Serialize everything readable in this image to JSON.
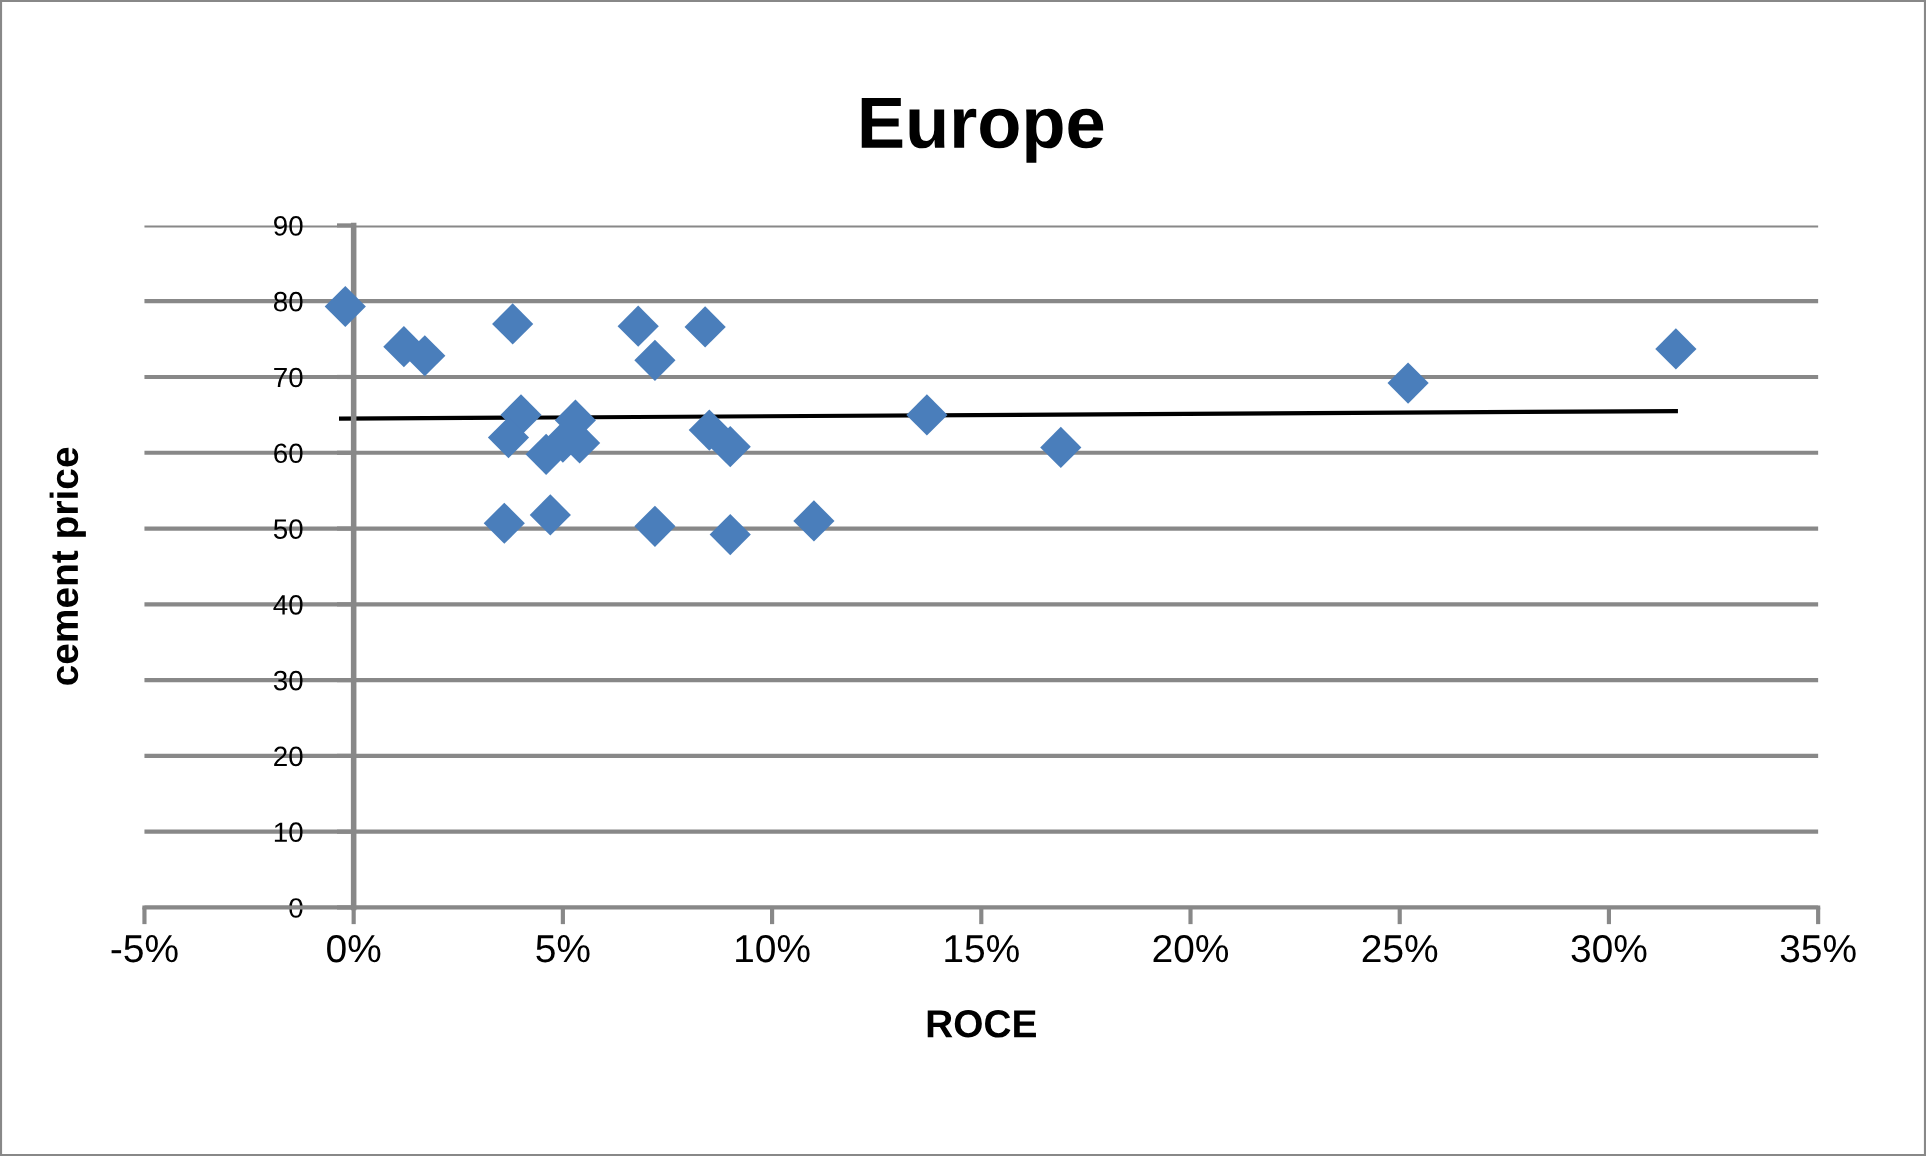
{
  "chart_data": {
    "type": "scatter",
    "title": "Europe",
    "xlabel": "ROCE",
    "ylabel": "cement price",
    "series": [
      {
        "color": "#4a7ebb",
        "marker": "diamond",
        "x": [
          -0.2,
          1.2,
          1.7,
          3.8,
          4.0,
          3.7,
          3.6,
          4.7,
          4.6,
          5.0,
          5.3,
          5.4,
          6.8,
          7.2,
          7.2,
          8.4,
          8.5,
          9.0,
          9.0,
          11.0,
          13.7,
          16.9,
          25.2,
          31.6
        ],
        "values": [
          79.3,
          74,
          72.8,
          77,
          65,
          62,
          50.7,
          51.8,
          59.8,
          61.4,
          64.3,
          61.3,
          76.7,
          72.2,
          50.3,
          76.6,
          63,
          60.8,
          49.2,
          51,
          65,
          60.7,
          69.2,
          73.7
        ]
      },
      {
        "type": "line",
        "color": "#000000",
        "marker": "none",
        "x": [
          -0.3,
          31.6
        ],
        "values": [
          64.5,
          65.5
        ]
      }
    ],
    "xlim": [
      -5,
      35
    ],
    "ylim": [
      0,
      90
    ],
    "xticks": [
      {
        "value": -5,
        "label": "-5%"
      },
      {
        "value": 0,
        "label": "0%"
      },
      {
        "value": 5,
        "label": "5%"
      },
      {
        "value": 10,
        "label": "10%"
      },
      {
        "value": 15,
        "label": "15%"
      },
      {
        "value": 20,
        "label": "20%"
      },
      {
        "value": 25,
        "label": "25%"
      },
      {
        "value": 30,
        "label": "30%"
      },
      {
        "value": 35,
        "label": "35%"
      }
    ],
    "yticks": [
      0,
      10,
      20,
      30,
      40,
      50,
      60,
      70,
      80,
      90
    ],
    "grid": "y"
  }
}
